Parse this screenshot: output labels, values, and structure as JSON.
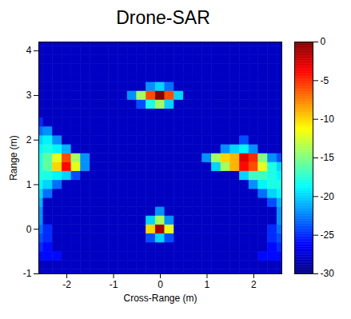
{
  "chart_data": {
    "type": "heatmap",
    "title": "Drone-SAR",
    "x_label": "Cross-Range (m)",
    "y_label": "Range (m)",
    "xlim": [
      -2.6,
      2.6
    ],
    "ylim": [
      -1,
      4.2
    ],
    "xticks": [
      -2,
      -1,
      0,
      1,
      2
    ],
    "yticks": [
      -1,
      0,
      1,
      2,
      3,
      4
    ],
    "colorbar": {
      "range": [
        -30,
        0
      ],
      "ticks": [
        0,
        -5,
        -10,
        -15,
        -20,
        -25,
        -30
      ]
    },
    "cells": {
      "x": [
        -2.6,
        -2.4,
        -2.2,
        -2.0,
        -1.8,
        -1.6,
        -1.4,
        -1.2,
        -1.0,
        -0.8,
        -0.6,
        -0.4,
        -0.2,
        0,
        0.2,
        0.4,
        0.6,
        0.8,
        1.0,
        1.2,
        1.4,
        1.6,
        1.8,
        2.0,
        2.2,
        2.4,
        2.6
      ],
      "y": [
        -1.0,
        -0.8,
        -0.6,
        -0.4,
        -0.2,
        0,
        0.2,
        0.4,
        0.6,
        0.8,
        1.0,
        1.2,
        1.4,
        1.6,
        1.8,
        2.0,
        2.2,
        2.4,
        2.6,
        2.8,
        3.0,
        3.2,
        3.4,
        3.6,
        3.8,
        4.0,
        4.2
      ],
      "values": [
        [
          -28,
          -28,
          -28,
          -28,
          -28,
          -28,
          -28,
          -28,
          -28,
          -28,
          -28,
          -28,
          -28,
          -28,
          -28,
          -28,
          -28,
          -28,
          -28,
          -28,
          -28,
          -28,
          -28,
          -28,
          -28,
          -28,
          -28
        ],
        [
          -28,
          -28,
          -28,
          -28,
          -28,
          -28,
          -28,
          -28,
          -28,
          -28,
          -28,
          -28,
          -28,
          -28,
          -28,
          -28,
          -28,
          -28,
          -28,
          -28,
          -28,
          -28,
          -28,
          -28,
          -28,
          -28,
          -28
        ],
        [
          -26,
          -26,
          -26,
          -28,
          -28,
          -28,
          -28,
          -28,
          -28,
          -28,
          -28,
          -28,
          -28,
          -28,
          -28,
          -28,
          -28,
          -28,
          -28,
          -28,
          -28,
          -28,
          -28,
          -28,
          -26,
          -26,
          -26
        ],
        [
          -25,
          -26,
          -28,
          -28,
          -28,
          -28,
          -28,
          -28,
          -28,
          -28,
          -28,
          -28,
          -28,
          -28,
          -28,
          -28,
          -28,
          -28,
          -28,
          -28,
          -28,
          -28,
          -28,
          -28,
          -28,
          -26,
          -25
        ],
        [
          -24,
          -25,
          -28,
          -28,
          -28,
          -28,
          -28,
          -28,
          -28,
          -28,
          -28,
          -28,
          -24,
          -20,
          -24,
          -28,
          -28,
          -28,
          -28,
          -28,
          -28,
          -28,
          -28,
          -28,
          -28,
          -25,
          -24
        ],
        [
          -23,
          -25,
          -28,
          -28,
          -28,
          -28,
          -28,
          -28,
          -28,
          -28,
          -28,
          -28,
          -10,
          -1,
          -12,
          -28,
          -28,
          -28,
          -28,
          -28,
          -28,
          -28,
          -28,
          -28,
          -28,
          -25,
          -23
        ],
        [
          -22,
          -28,
          -28,
          -28,
          -28,
          -28,
          -28,
          -28,
          -28,
          -28,
          -28,
          -28,
          -20,
          -14,
          -22,
          -28,
          -28,
          -28,
          -28,
          -28,
          -28,
          -28,
          -28,
          -28,
          -28,
          -28,
          -22
        ],
        [
          -22,
          -28,
          -28,
          -28,
          -28,
          -28,
          -28,
          -28,
          -28,
          -28,
          -28,
          -28,
          -28,
          -22,
          -28,
          -28,
          -28,
          -28,
          -28,
          -28,
          -28,
          -28,
          -28,
          -28,
          -28,
          -28,
          -22
        ],
        [
          -21,
          -28,
          -28,
          -28,
          -28,
          -28,
          -28,
          -28,
          -28,
          -28,
          -28,
          -28,
          -28,
          -28,
          -28,
          -28,
          -28,
          -28,
          -28,
          -28,
          -28,
          -28,
          -28,
          -28,
          -28,
          -24,
          -21
        ],
        [
          -20,
          -23,
          -28,
          -28,
          -28,
          -28,
          -28,
          -28,
          -28,
          -28,
          -28,
          -28,
          -28,
          -28,
          -28,
          -28,
          -28,
          -28,
          -28,
          -28,
          -28,
          -28,
          -28,
          -28,
          -23,
          -20,
          -19
        ],
        [
          -19,
          -20,
          -23,
          -28,
          -28,
          -28,
          -28,
          -28,
          -28,
          -28,
          -28,
          -28,
          -28,
          -28,
          -28,
          -28,
          -28,
          -28,
          -28,
          -28,
          -28,
          -28,
          -28,
          -22,
          -19,
          -18,
          -18
        ],
        [
          -18,
          -18,
          -19,
          -20,
          -24,
          -28,
          -28,
          -28,
          -28,
          -28,
          -28,
          -28,
          -28,
          -28,
          -28,
          -28,
          -28,
          -28,
          -28,
          -28,
          -28,
          -28,
          -20,
          -17,
          -17,
          -18,
          -19
        ],
        [
          -18,
          -16,
          -10,
          -4,
          -12,
          -22,
          -28,
          -28,
          -28,
          -28,
          -28,
          -28,
          -28,
          -28,
          -28,
          -28,
          -28,
          -28,
          -28,
          -20,
          -14,
          -9,
          -4,
          -6,
          -12,
          -18,
          -20
        ],
        [
          -18,
          -16,
          -12,
          -6,
          -14,
          -22,
          -28,
          -28,
          -28,
          -28,
          -28,
          -28,
          -28,
          -28,
          -28,
          -28,
          -28,
          -28,
          -22,
          -14,
          -10,
          -9,
          -3,
          -5,
          -15,
          -22,
          -24
        ],
        [
          -19,
          -18,
          -19,
          -21,
          -28,
          -28,
          -28,
          -28,
          -28,
          -28,
          -28,
          -28,
          -28,
          -28,
          -28,
          -28,
          -28,
          -28,
          -28,
          -28,
          -22,
          -20,
          -19,
          -22,
          -28,
          -28,
          -28
        ],
        [
          -20,
          -19,
          -22,
          -28,
          -28,
          -28,
          -28,
          -28,
          -28,
          -28,
          -28,
          -28,
          -28,
          -28,
          -28,
          -28,
          -28,
          -28,
          -28,
          -28,
          -28,
          -28,
          -24,
          -28,
          -28,
          -28,
          -28
        ],
        [
          -23,
          -22,
          -28,
          -28,
          -28,
          -28,
          -28,
          -28,
          -28,
          -28,
          -28,
          -28,
          -28,
          -28,
          -28,
          -28,
          -28,
          -28,
          -28,
          -28,
          -28,
          -28,
          -28,
          -28,
          -28,
          -28,
          -28
        ],
        [
          -25,
          -28,
          -28,
          -28,
          -28,
          -28,
          -28,
          -28,
          -28,
          -28,
          -28,
          -28,
          -28,
          -28,
          -28,
          -28,
          -28,
          -28,
          -28,
          -28,
          -28,
          -28,
          -28,
          -28,
          -28,
          -28,
          -28
        ],
        [
          -28,
          -28,
          -28,
          -28,
          -28,
          -28,
          -28,
          -28,
          -28,
          -28,
          -28,
          -28,
          -28,
          -28,
          -28,
          -28,
          -28,
          -28,
          -28,
          -28,
          -28,
          -28,
          -28,
          -28,
          -28,
          -28,
          -28
        ],
        [
          -28,
          -28,
          -28,
          -28,
          -28,
          -28,
          -28,
          -28,
          -28,
          -28,
          -28,
          -24,
          -18,
          -14,
          -20,
          -28,
          -28,
          -28,
          -28,
          -28,
          -28,
          -28,
          -28,
          -28,
          -28,
          -28,
          -28
        ],
        [
          -28,
          -28,
          -28,
          -28,
          -28,
          -28,
          -28,
          -28,
          -28,
          -28,
          -22,
          -14,
          -6,
          0,
          -6,
          -20,
          -28,
          -28,
          -28,
          -28,
          -28,
          -28,
          -28,
          -28,
          -28,
          -28,
          -28
        ],
        [
          -28,
          -28,
          -28,
          -28,
          -28,
          -28,
          -28,
          -28,
          -28,
          -28,
          -28,
          -28,
          -22,
          -20,
          -23,
          -28,
          -28,
          -28,
          -28,
          -28,
          -28,
          -28,
          -28,
          -28,
          -28,
          -28,
          -28
        ],
        [
          -28,
          -28,
          -28,
          -28,
          -28,
          -28,
          -28,
          -28,
          -28,
          -28,
          -28,
          -28,
          -28,
          -28,
          -28,
          -28,
          -28,
          -28,
          -28,
          -28,
          -28,
          -28,
          -28,
          -28,
          -28,
          -28,
          -28
        ],
        [
          -28,
          -28,
          -28,
          -28,
          -28,
          -28,
          -28,
          -28,
          -28,
          -28,
          -28,
          -28,
          -28,
          -28,
          -28,
          -28,
          -28,
          -28,
          -28,
          -28,
          -28,
          -28,
          -28,
          -28,
          -28,
          -28,
          -28
        ],
        [
          -28,
          -28,
          -28,
          -28,
          -28,
          -28,
          -28,
          -28,
          -28,
          -28,
          -28,
          -28,
          -28,
          -28,
          -28,
          -28,
          -28,
          -28,
          -28,
          -28,
          -28,
          -28,
          -28,
          -28,
          -28,
          -28,
          -28
        ],
        [
          -28,
          -28,
          -28,
          -28,
          -28,
          -28,
          -28,
          -28,
          -28,
          -28,
          -28,
          -28,
          -28,
          -28,
          -28,
          -28,
          -28,
          -28,
          -28,
          -28,
          -28,
          -28,
          -28,
          -28,
          -28,
          -28,
          -28
        ],
        [
          -28,
          -28,
          -28,
          -28,
          -28,
          -28,
          -28,
          -28,
          -28,
          -28,
          -28,
          -28,
          -28,
          -28,
          -28,
          -28,
          -28,
          -28,
          -28,
          -28,
          -28,
          -28,
          -28,
          -28,
          -28,
          -28,
          -28
        ]
      ]
    }
  }
}
